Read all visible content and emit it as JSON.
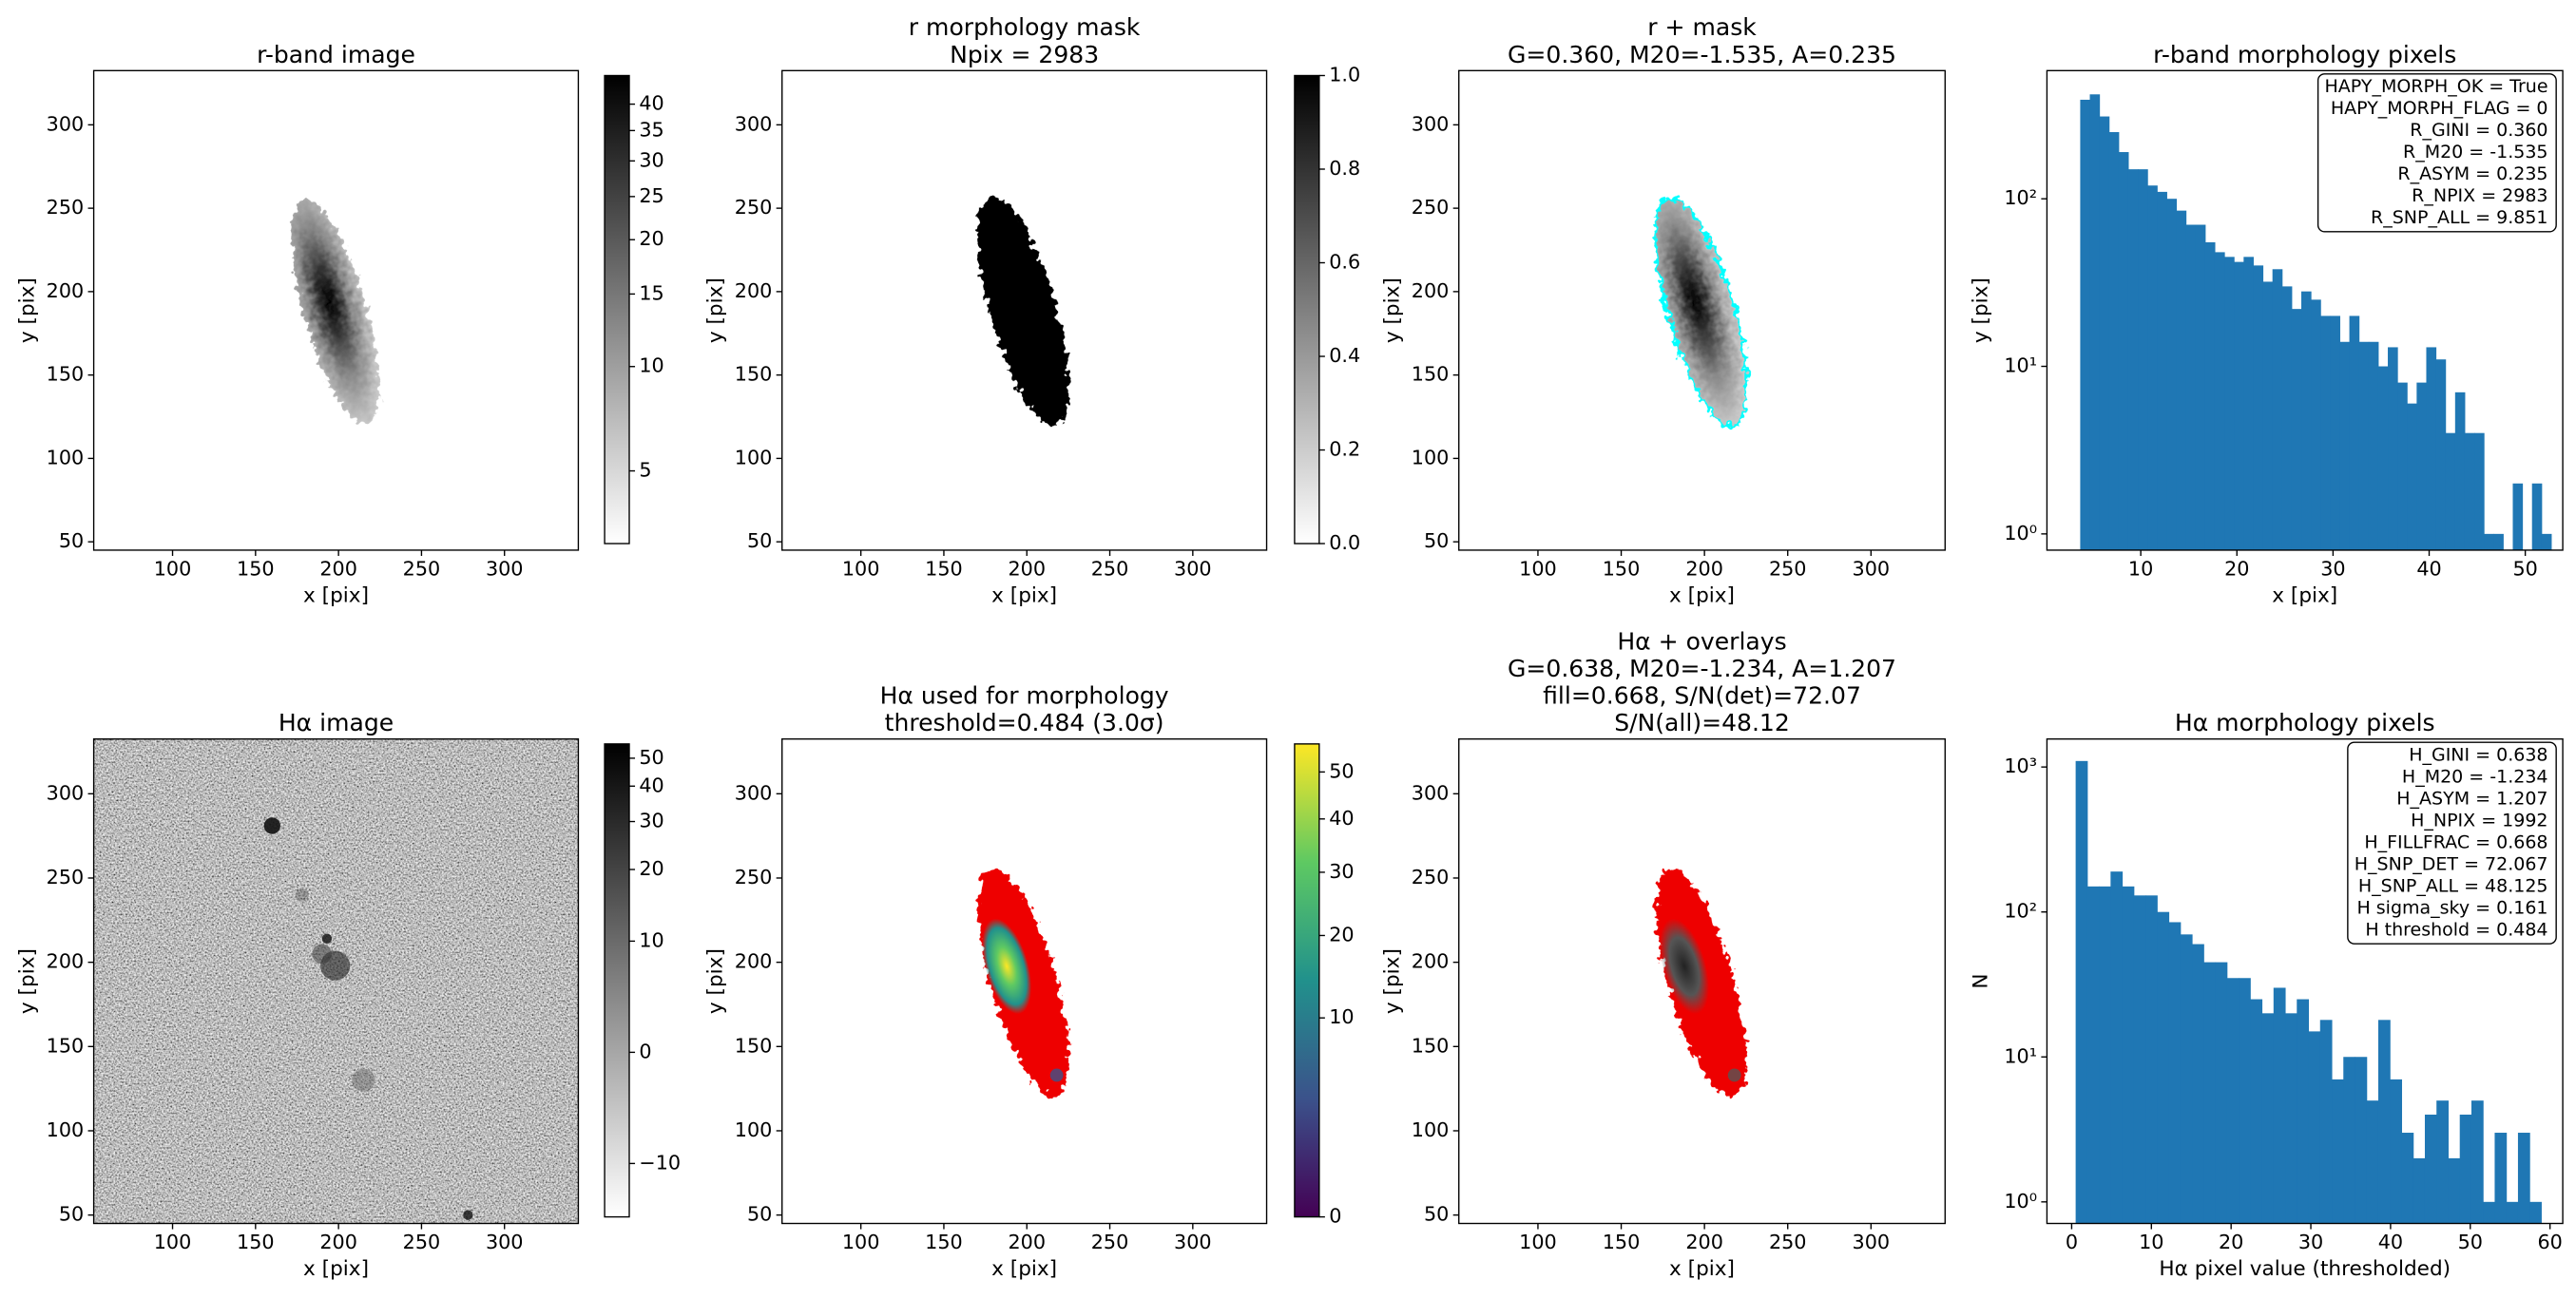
{
  "chart_data": [
    {
      "type": "image",
      "title": [
        "r-band image"
      ],
      "xlabel": "x [pix]",
      "ylabel": "y [pix]",
      "xlim": [
        52.5,
        344.5
      ],
      "ylim": [
        45,
        332.5
      ],
      "xticks": [
        100,
        150,
        200,
        250,
        300
      ],
      "yticks": [
        50,
        100,
        150,
        200,
        250,
        300
      ],
      "cmap": "gray_r",
      "colorbar": {
        "scale": "asinh",
        "lim": [
          2.4,
          46.2
        ],
        "ticks": [
          5,
          10,
          15,
          20,
          25,
          30,
          35,
          40
        ]
      }
    },
    {
      "type": "image",
      "title": [
        "r morphology mask",
        "Npix = 2983"
      ],
      "xlabel": "x [pix]",
      "ylabel": "y [pix]",
      "xlim": [
        52.5,
        344.5
      ],
      "ylim": [
        45,
        332.5
      ],
      "xticks": [
        100,
        150,
        200,
        250,
        300
      ],
      "yticks": [
        50,
        100,
        150,
        200,
        250,
        300
      ],
      "cmap": "gray_r",
      "colorbar": {
        "scale": "linear",
        "lim": [
          0,
          1
        ],
        "ticks": [
          {
            "value": 0,
            "label": "0.0"
          },
          {
            "value": 0.2,
            "label": "0.2"
          },
          {
            "value": 0.4,
            "label": "0.4"
          },
          {
            "value": 0.6,
            "label": "0.6"
          },
          {
            "value": 0.8,
            "label": "0.8"
          },
          {
            "value": 1,
            "label": "1.0"
          }
        ]
      }
    },
    {
      "type": "image",
      "title": [
        "r + mask",
        "G=0.360, M20=-1.535, A=0.235"
      ],
      "xlabel": "x [pix]",
      "ylabel": "y [pix]",
      "xlim": [
        52.5,
        344.5
      ],
      "ylim": [
        45,
        332.5
      ],
      "xticks": [
        100,
        150,
        200,
        250,
        300
      ],
      "yticks": [
        50,
        100,
        150,
        200,
        250,
        300
      ],
      "cmap": "gray_r"
    },
    {
      "type": "histogram",
      "title": [
        "r-band morphology pixels"
      ],
      "xlabel": "x [pix]",
      "ylabel": "y [pix]",
      "bins": [
        3.7,
        4.7,
        5.7,
        6.7,
        7.7,
        8.7,
        9.7,
        10.7,
        11.7,
        12.7,
        13.7,
        14.7,
        15.7,
        16.7,
        17.7,
        18.7,
        19.7,
        20.7,
        21.7,
        22.7,
        23.7,
        24.7,
        25.7,
        26.7,
        27.7,
        28.7,
        29.7,
        30.7,
        31.7,
        32.7,
        33.7,
        34.7,
        35.7,
        36.7,
        37.7,
        38.7,
        39.7,
        40.7,
        41.7,
        42.7,
        43.7,
        44.7,
        45.7,
        46.7,
        47.7,
        48.7,
        49.7,
        50.7,
        51.7,
        52.7
      ],
      "values": [
        390,
        420,
        310,
        250,
        190,
        150,
        150,
        120,
        110,
        100,
        85,
        70,
        70,
        55,
        48,
        45,
        42,
        45,
        40,
        32,
        38,
        30,
        22,
        28,
        25,
        20,
        20,
        14,
        20,
        14,
        14,
        10,
        13,
        8,
        6,
        8,
        13,
        11,
        4,
        7,
        4,
        4,
        1,
        1,
        0,
        2,
        0,
        2,
        1
      ],
      "color": "#1f77b4",
      "log_y": true,
      "xlim": [
        0.24,
        53.9
      ],
      "ylim": [
        0.8,
        582
      ],
      "xticks": [
        10,
        20,
        30,
        40,
        50
      ],
      "yticks": [
        {
          "value": 1,
          "label": "10⁰"
        },
        {
          "value": 10,
          "label": "10¹"
        },
        {
          "value": 100,
          "label": "10²"
        }
      ],
      "annotation": [
        "HAPY_MORPH_OK = True",
        "HAPY_MORPH_FLAG = 0",
        "R_GINI = 0.360",
        "R_M20 = -1.535",
        "R_ASYM = 0.235",
        "R_NPIX = 2983",
        "R_SNP_ALL = 9.851"
      ]
    },
    {
      "type": "image",
      "title": [
        "Hα image"
      ],
      "xlabel": "x [pix]",
      "ylabel": "y [pix]",
      "xlim": [
        52.5,
        344.5
      ],
      "ylim": [
        45,
        332.5
      ],
      "xticks": [
        100,
        150,
        200,
        250,
        300
      ],
      "yticks": [
        50,
        100,
        150,
        200,
        250,
        300
      ],
      "cmap": "gray_r",
      "colorbar": {
        "scale": "asinh",
        "lim": [
          -17,
          56
        ],
        "ticks": [
          {
            "value": -10,
            "label": "−10"
          },
          0,
          10,
          20,
          30,
          40,
          50
        ]
      }
    },
    {
      "type": "image",
      "title": [
        "Hα used for morphology",
        "threshold=0.484 (3.0σ)"
      ],
      "xlabel": "x [pix]",
      "ylabel": "y [pix]",
      "xlim": [
        52.5,
        344.5
      ],
      "ylim": [
        45,
        332.5
      ],
      "xticks": [
        100,
        150,
        200,
        250,
        300
      ],
      "yticks": [
        50,
        100,
        150,
        200,
        250,
        300
      ],
      "cmap": "viridis",
      "colorbar": {
        "scale": "sqrt",
        "lim": [
          0,
          56.5
        ],
        "ticks": [
          0,
          10,
          20,
          30,
          40,
          50
        ]
      }
    },
    {
      "type": "image",
      "title": [
        "Hα + overlays",
        "G=0.638, M20=-1.234, A=1.207",
        "fill=0.668, S/N(det)=72.07",
        "S/N(all)=48.12"
      ],
      "xlabel": "x [pix]",
      "ylabel": "y [pix]",
      "xlim": [
        52.5,
        344.5
      ],
      "ylim": [
        45,
        332.5
      ],
      "xticks": [
        100,
        150,
        200,
        250,
        300
      ],
      "yticks": [
        50,
        100,
        150,
        200,
        250,
        300
      ],
      "cmap": "gray_r"
    },
    {
      "type": "histogram",
      "title": [
        "Hα morphology pixels"
      ],
      "xlabel": "Hα pixel value (thresholded)",
      "ylabel": "N",
      "bins": [
        0.5,
        1.96,
        3.42,
        4.88,
        6.34,
        7.8,
        9.26,
        10.72,
        12.18,
        13.64,
        15.1,
        16.56,
        18.02,
        19.48,
        20.94,
        22.4,
        23.86,
        25.32,
        26.78,
        28.24,
        29.7,
        31.16,
        32.62,
        34.08,
        35.54,
        37,
        38.46,
        39.92,
        41.38,
        42.84,
        44.3,
        45.76,
        47.22,
        48.68,
        50.14,
        51.6,
        53.06,
        54.52,
        55.98,
        57.44,
        58.9
      ],
      "values": [
        1100,
        150,
        150,
        190,
        150,
        130,
        130,
        100,
        85,
        70,
        60,
        45,
        45,
        35,
        35,
        25,
        20,
        30,
        20,
        25,
        15,
        18,
        7,
        10,
        10,
        5,
        18,
        7,
        3,
        2,
        4,
        5,
        2,
        4,
        5,
        1,
        3,
        1,
        3,
        1
      ],
      "color": "#1f77b4",
      "log_y": true,
      "xlim": [
        -3.1,
        61.6
      ],
      "ylim": [
        0.71,
        1560
      ],
      "xticks": [
        0,
        10,
        20,
        30,
        40,
        50,
        60
      ],
      "yticks": [
        {
          "value": 1,
          "label": "10⁰"
        },
        {
          "value": 10,
          "label": "10¹"
        },
        {
          "value": 100,
          "label": "10²"
        },
        {
          "value": 1000,
          "label": "10³"
        }
      ],
      "annotation": [
        "H_GINI = 0.638",
        "H_M20 = -1.234",
        "H_ASYM = 1.207",
        "H_NPIX = 1992",
        "H_FILLFRAC = 0.668",
        "H_SNP_DET = 72.067",
        "H_SNP_ALL = 48.125",
        "H sigma_sky = 0.161",
        "H threshold = 0.484"
      ]
    }
  ]
}
